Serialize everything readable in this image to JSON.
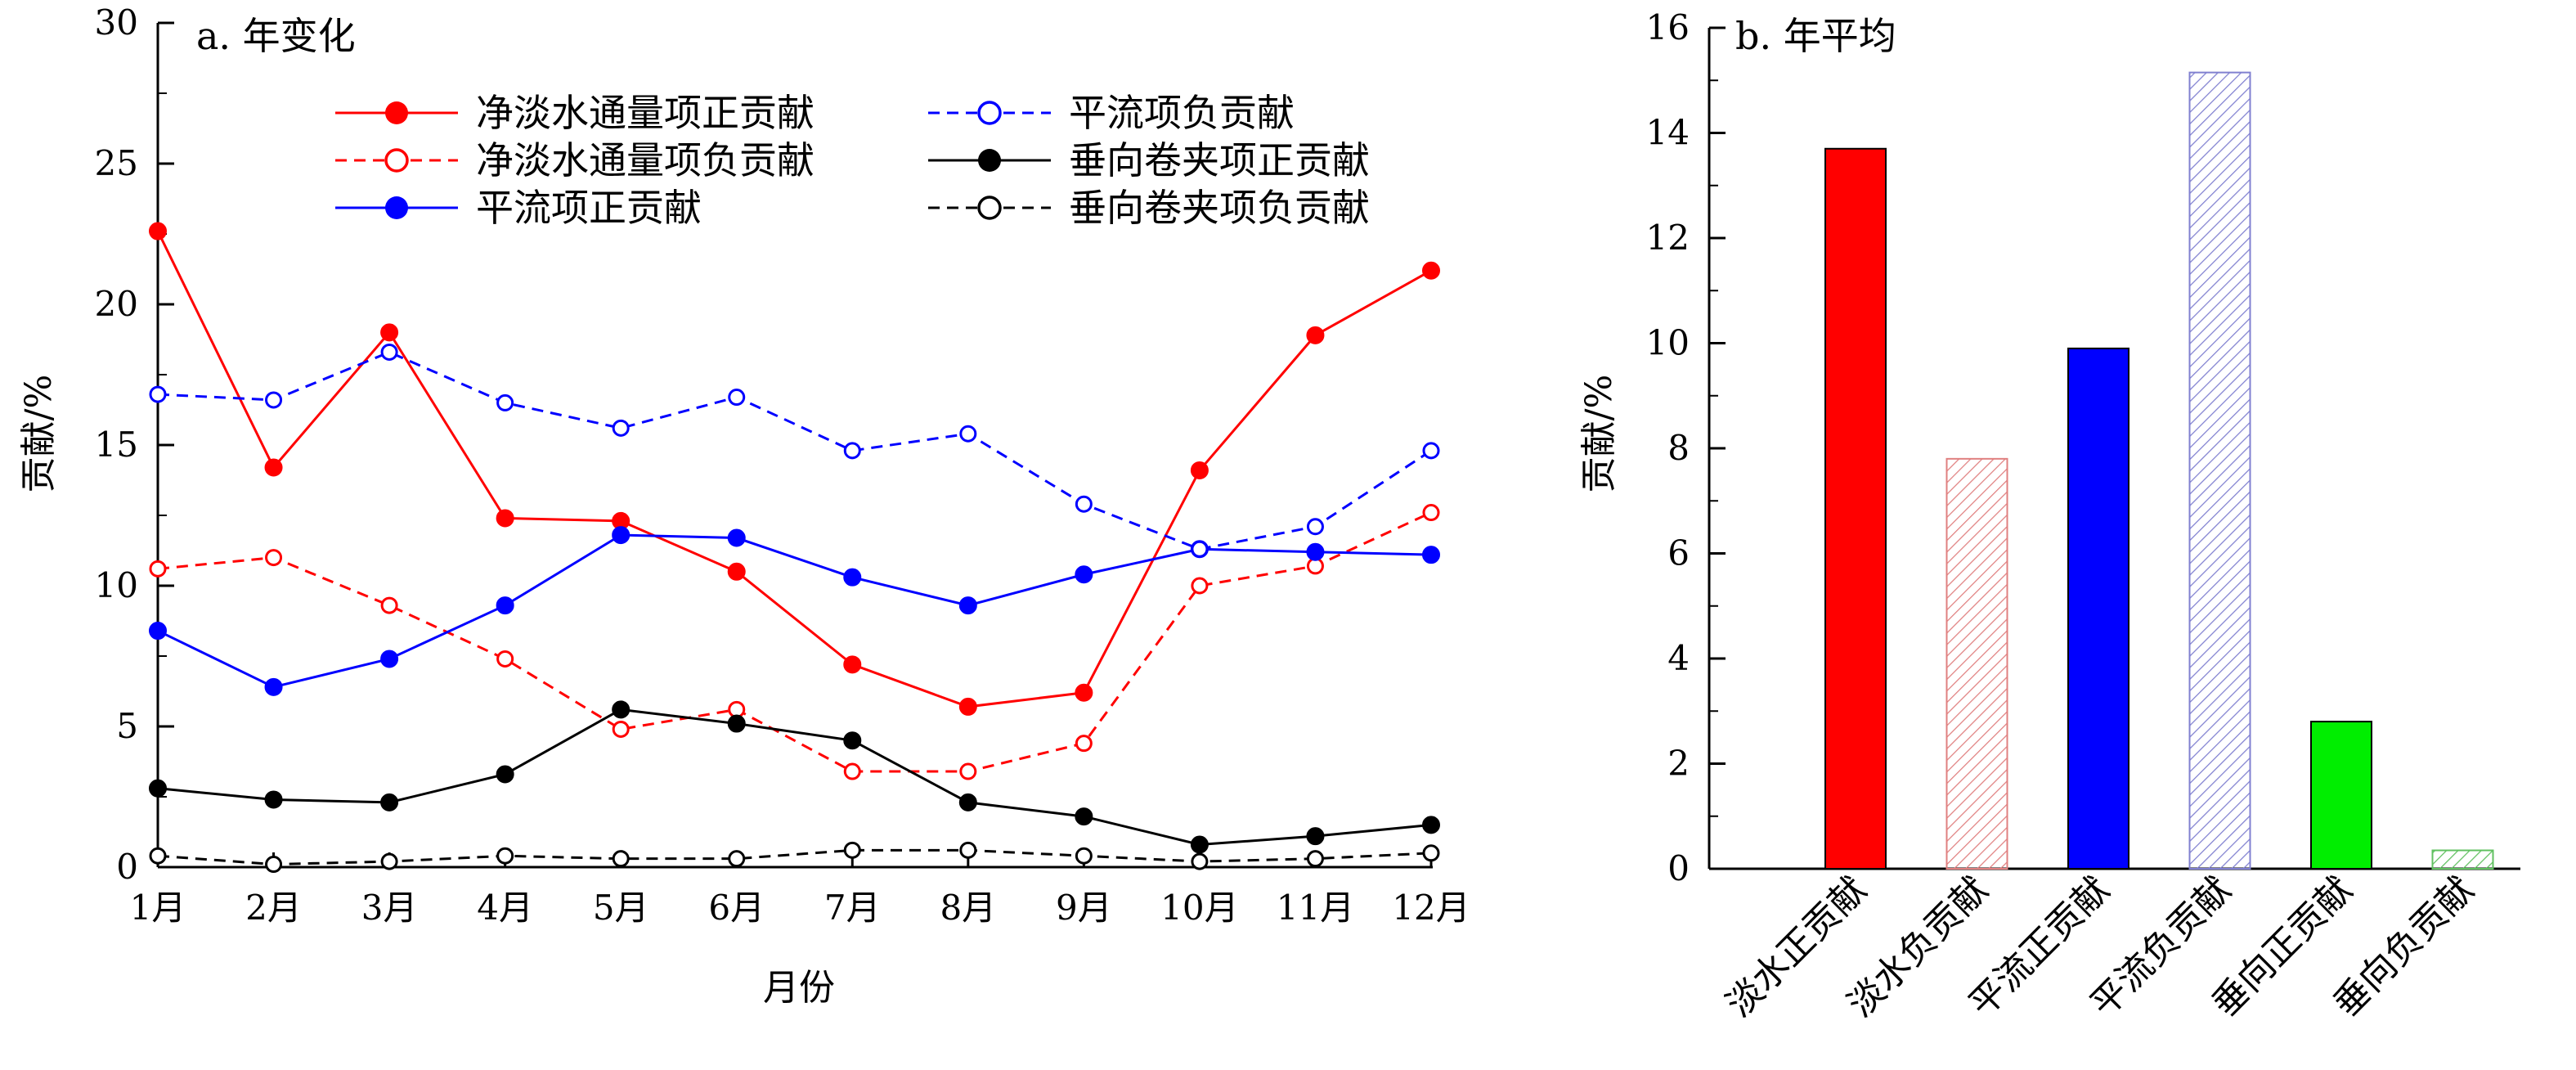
{
  "colors": {
    "red": "#ff0000",
    "blue": "#0000ff",
    "black": "#000000",
    "green": "#00ee00",
    "pink_hatch": "#e08080",
    "blue_hatch": "#8080d0",
    "green_hatch": "#60c060"
  },
  "chart_data": [
    {
      "type": "line",
      "title": "a. 年变化",
      "xlabel": "月份",
      "ylabel": "贡献/%",
      "ylim": [
        0,
        30
      ],
      "yticks": [
        0,
        5,
        10,
        15,
        20,
        25,
        30
      ],
      "categories": [
        "1月",
        "2月",
        "3月",
        "4月",
        "5月",
        "6月",
        "7月",
        "8月",
        "9月",
        "10月",
        "11月",
        "12月"
      ],
      "legend_placement": "top",
      "series": [
        {
          "name": "净淡水通量项正贡献",
          "color": "#ff0000",
          "dash": "solid",
          "marker": "filled",
          "values": [
            22.6,
            14.2,
            19.0,
            12.4,
            12.3,
            10.5,
            7.2,
            5.7,
            6.2,
            14.1,
            18.9,
            21.2
          ]
        },
        {
          "name": "净淡水通量项负贡献",
          "color": "#ff0000",
          "dash": "dashed",
          "marker": "open",
          "values": [
            10.6,
            11.0,
            9.3,
            7.4,
            4.9,
            5.6,
            3.4,
            3.4,
            4.4,
            10.0,
            10.7,
            12.6
          ]
        },
        {
          "name": "平流项正贡献",
          "color": "#0000ff",
          "dash": "solid",
          "marker": "filled",
          "values": [
            8.4,
            6.4,
            7.4,
            9.3,
            11.8,
            11.7,
            10.3,
            9.3,
            10.4,
            11.3,
            11.2,
            11.1
          ]
        },
        {
          "name": "平流项负贡献",
          "color": "#0000ff",
          "dash": "dashed",
          "marker": "open",
          "values": [
            16.8,
            16.6,
            18.3,
            16.5,
            15.6,
            16.7,
            14.8,
            15.4,
            12.9,
            11.3,
            12.1,
            14.8
          ]
        },
        {
          "name": "垂向卷夹项正贡献",
          "color": "#000000",
          "dash": "solid",
          "marker": "filled",
          "values": [
            2.8,
            2.4,
            2.3,
            3.3,
            5.6,
            5.1,
            4.5,
            2.3,
            1.8,
            0.8,
            1.1,
            1.5
          ]
        },
        {
          "name": "垂向卷夹项负贡献",
          "color": "#000000",
          "dash": "dashed",
          "marker": "open",
          "values": [
            0.4,
            0.1,
            0.2,
            0.4,
            0.3,
            0.3,
            0.6,
            0.6,
            0.4,
            0.2,
            0.3,
            0.5
          ]
        }
      ]
    },
    {
      "type": "bar",
      "title": "b. 年平均",
      "xlabel": "",
      "ylabel": "贡献/%",
      "ylim": [
        0,
        16
      ],
      "yticks": [
        0,
        2,
        4,
        6,
        8,
        10,
        12,
        14,
        16
      ],
      "categories": [
        "淡水正贡献",
        "淡水负贡献",
        "平流正贡献",
        "平流负贡献",
        "垂向正贡献",
        "垂向负贡献"
      ],
      "values": [
        13.7,
        7.8,
        9.9,
        15.15,
        2.8,
        0.35
      ],
      "bar_styles": [
        {
          "fill": "#ff0000",
          "hatched": false
        },
        {
          "fill": "#e08080",
          "hatched": true
        },
        {
          "fill": "#0000ff",
          "hatched": false
        },
        {
          "fill": "#8080d0",
          "hatched": true
        },
        {
          "fill": "#00ee00",
          "hatched": false
        },
        {
          "fill": "#60c060",
          "hatched": true
        }
      ]
    }
  ]
}
